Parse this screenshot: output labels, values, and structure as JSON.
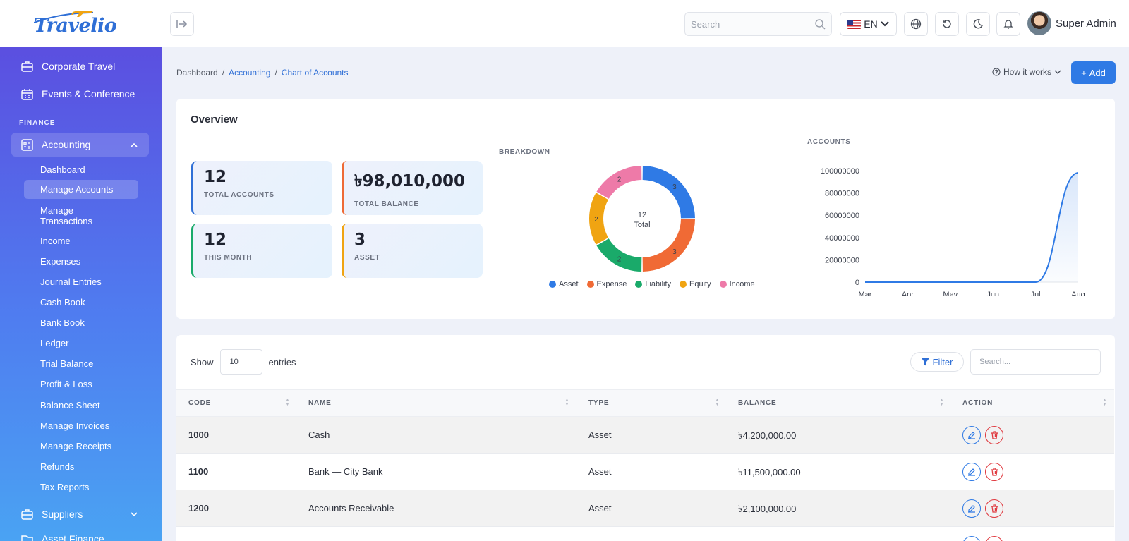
{
  "app": {
    "logo_text": "Travelio"
  },
  "topbar": {
    "search_placeholder": "Search",
    "language": "EN",
    "user_name": "Super Admin"
  },
  "sidebar": {
    "top_items": [
      {
        "label": "Corporate Travel",
        "icon": "briefcase-icon"
      },
      {
        "label": "Events & Conference",
        "icon": "calendar-icon"
      }
    ],
    "section_finance": "FINANCE",
    "accounting": {
      "label": "Accounting",
      "expanded": true
    },
    "sub_items": [
      "Dashboard",
      "Manage Accounts",
      "Manage Transactions",
      "Income",
      "Expenses",
      "Journal Entries",
      "Cash Book",
      "Bank Book",
      "Ledger",
      "Trial Balance",
      "Profit & Loss",
      "Balance Sheet",
      "Manage Invoices",
      "Manage Receipts",
      "Refunds",
      "Tax Reports"
    ],
    "active_sub": "Manage Accounts",
    "bottom_items": [
      {
        "label": "Suppliers"
      },
      {
        "label": "Asset Finance"
      }
    ]
  },
  "breadcrumb": {
    "home": "Dashboard",
    "section": "Accounting",
    "current": "Chart of Accounts"
  },
  "header_actions": {
    "how_it_works": "How it works",
    "add": "Add"
  },
  "overview": {
    "title": "Overview",
    "stats": [
      {
        "value": "12",
        "label": "TOTAL ACCOUNTS",
        "color": "#2f6fd6"
      },
      {
        "value": "৳98,010,000",
        "label": "TOTAL BALANCE",
        "color": "#ee6a36"
      },
      {
        "value": "12",
        "label": "THIS MONTH",
        "color": "#1aaa6a"
      },
      {
        "value": "3",
        "label": "ASSET",
        "color": "#f0a412"
      }
    ],
    "breakdown_title": "BREAKDOWN",
    "accounts_title": "ACCOUNTS"
  },
  "chart_data": [
    {
      "type": "pie",
      "title": "BREAKDOWN",
      "center_value": "12",
      "center_label": "Total",
      "categories": [
        "Asset",
        "Expense",
        "Liability",
        "Equity",
        "Income"
      ],
      "values": [
        3,
        3,
        2,
        2,
        2
      ],
      "colors": [
        "#2f7ae5",
        "#f06a35",
        "#1aaa6a",
        "#f0a412",
        "#ee7aa8"
      ],
      "legend": "bottom"
    },
    {
      "type": "area",
      "title": "ACCOUNTS",
      "categories": [
        "Mar",
        "Apr",
        "May",
        "Jun",
        "Jul",
        "Aug"
      ],
      "values": [
        0,
        0,
        0,
        0,
        0,
        98010000
      ],
      "yticks": [
        0,
        20000000,
        40000000,
        60000000,
        80000000,
        100000000
      ],
      "ylim": [
        0,
        100000000
      ],
      "color": "#2f7ae5",
      "grid": false
    }
  ],
  "table": {
    "show_label": "Show",
    "entries_value": "10",
    "entries_label": "entries",
    "filter_label": "Filter",
    "search_placeholder": "Search...",
    "columns": [
      "CODE",
      "NAME",
      "TYPE",
      "BALANCE",
      "ACTION"
    ],
    "rows": [
      {
        "code": "1000",
        "name": "Cash",
        "type": "Asset",
        "balance": "৳4,200,000.00"
      },
      {
        "code": "1100",
        "name": "Bank — City Bank",
        "type": "Asset",
        "balance": "৳11,500,000.00"
      },
      {
        "code": "1200",
        "name": "Accounts Receivable",
        "type": "Asset",
        "balance": "৳2,100,000.00"
      }
    ]
  }
}
